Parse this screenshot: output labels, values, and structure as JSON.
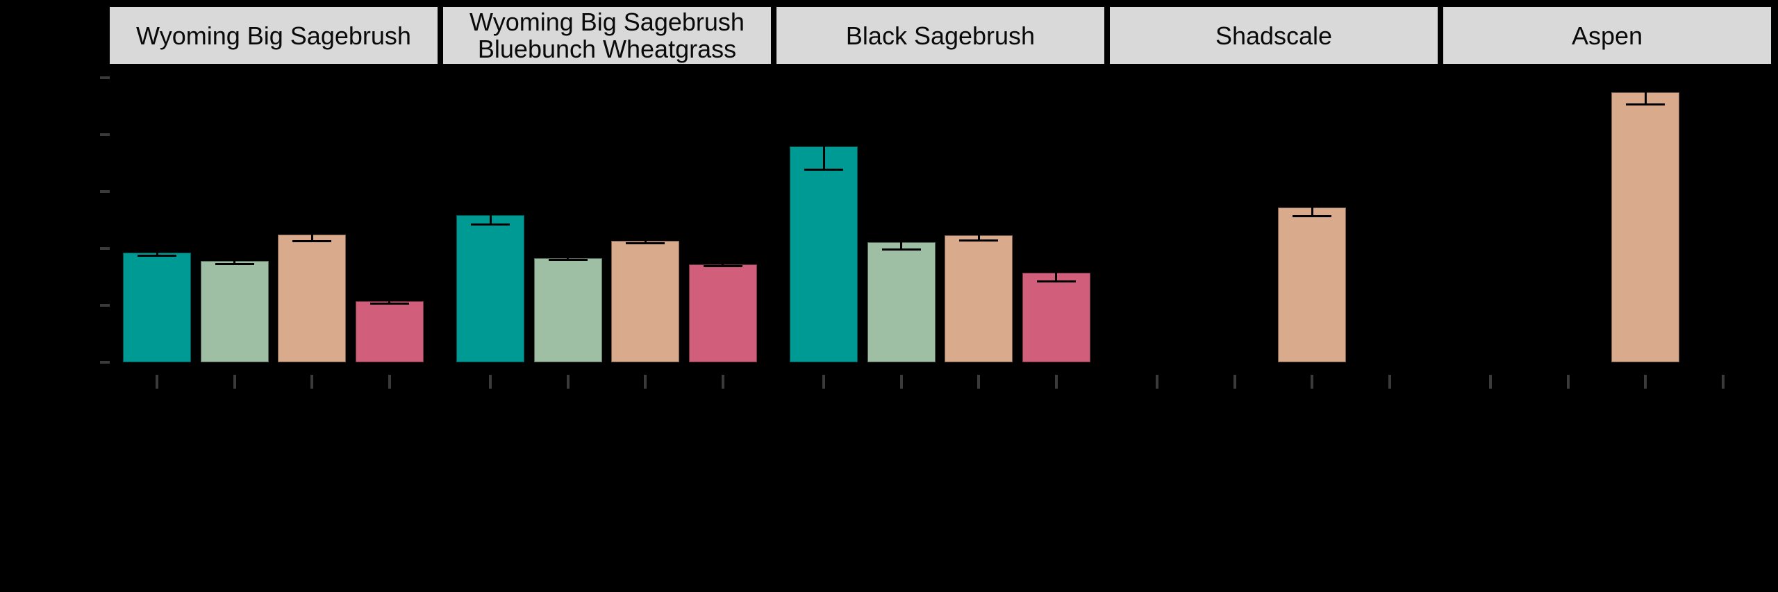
{
  "figure": {
    "background_color": "#000000",
    "strip_fill": "#D9D9D9",
    "strip_text_color": "#0A0A0A",
    "axis_tick_color": "#3A3A3A",
    "errorbar_color": "#000000",
    "axis_text_visible": false,
    "note": "Axis tick labels, axis titles and legend are not visible in the image (rendered black on black); only strip labels, bars, error bars and tick marks are visible."
  },
  "chart_data": {
    "type": "bar",
    "title": "",
    "xlabel": "",
    "ylabel": "",
    "legend_visible": false,
    "facet_labels": [
      "Wyoming Big Sagebrush",
      "Wyoming Big Sagebrush Bluebunch Wheatgrass",
      "Black Sagebrush",
      "Shadscale",
      "Aspen"
    ],
    "y_axis": {
      "tick_count": 6,
      "tick_labels_visible": false,
      "units_per_gridline": 10,
      "ylim": [
        0,
        52.5
      ],
      "values_are_estimated_from_gridlines": true
    },
    "x_axis": {
      "ticks_per_facet": 4,
      "tick_labels_visible": false
    },
    "groups": [
      {
        "id": "teal",
        "color": "#009A94"
      },
      {
        "id": "green",
        "color": "#9EBFA4"
      },
      {
        "id": "tan",
        "color": "#DAAA8D"
      },
      {
        "id": "pink",
        "color": "#D15F7B"
      }
    ],
    "facets": [
      {
        "label_lines": [
          "Wyoming Big Sagebrush"
        ],
        "bars": [
          {
            "group": "teal",
            "value": 19.3,
            "se": 0.7
          },
          {
            "group": "green",
            "value": 17.8,
            "se": 0.6
          },
          {
            "group": "tan",
            "value": 22.4,
            "se": 1.2
          },
          {
            "group": "pink",
            "value": 10.7,
            "se": 0.5
          }
        ]
      },
      {
        "label_lines": [
          "Wyoming Big Sagebrush",
          "Bluebunch Wheatgrass"
        ],
        "bars": [
          {
            "group": "teal",
            "value": 25.9,
            "se": 1.7
          },
          {
            "group": "green",
            "value": 18.3,
            "se": 0.4
          },
          {
            "group": "tan",
            "value": 21.3,
            "se": 0.4
          },
          {
            "group": "pink",
            "value": 17.2,
            "se": 0.4
          }
        ]
      },
      {
        "label_lines": [
          "Black Sagebrush"
        ],
        "bars": [
          {
            "group": "teal",
            "value": 37.9,
            "se": 4.1
          },
          {
            "group": "green",
            "value": 21.1,
            "se": 1.3
          },
          {
            "group": "tan",
            "value": 22.3,
            "se": 0.9
          },
          {
            "group": "pink",
            "value": 15.7,
            "se": 1.6
          }
        ]
      },
      {
        "label_lines": [
          "Shadscale"
        ],
        "bars": [
          {
            "group": "tan",
            "value": 27.2,
            "se": 1.6
          }
        ]
      },
      {
        "label_lines": [
          "Aspen"
        ],
        "bars": [
          {
            "group": "tan",
            "value": 47.4,
            "se": 2.2
          }
        ]
      }
    ]
  }
}
